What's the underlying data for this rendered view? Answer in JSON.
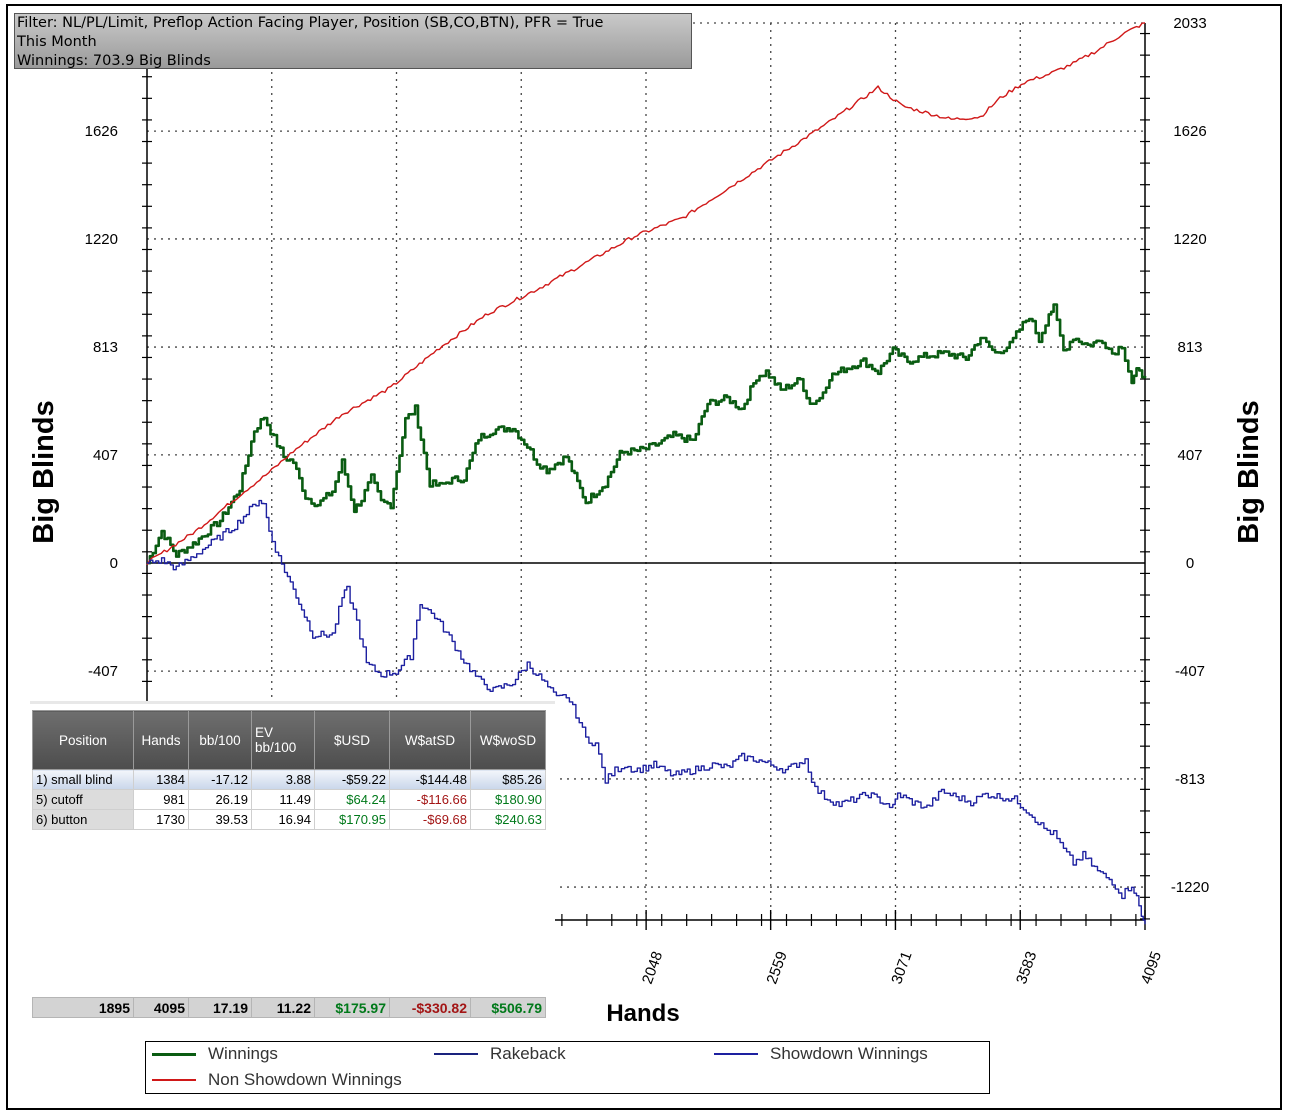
{
  "filter_box": {
    "line1": "Filter: NL/PL/Limit, Preflop Action Facing Player, Position (SB,CO,BTN), PFR = True",
    "line2": "This Month",
    "line3": "Winnings: 703.9 Big Blinds"
  },
  "colors": {
    "winnings": "#0a5c12",
    "non_showdown": "#d01818",
    "showdown": "#1d20a0",
    "rakeback": "#1a237e",
    "positive": "#00791a",
    "negative": "#a31515",
    "header_bg": "#5a5a5a"
  },
  "table": {
    "headers": [
      "Position",
      "Hands",
      "bb/100",
      "EV bb/100",
      "$USD",
      "W$atSD",
      "W$woSD"
    ],
    "rows": [
      [
        "1) small blind",
        "1384",
        "-17.12",
        "3.88",
        "-$59.22",
        "-$144.48",
        "$85.26"
      ],
      [
        "5) cutoff",
        "981",
        "26.19",
        "11.49",
        "$64.24",
        "-$116.66",
        "$180.90"
      ],
      [
        "6) button",
        "1730",
        "39.53",
        "16.94",
        "$170.95",
        "-$69.68",
        "$240.63"
      ]
    ],
    "totals": [
      "1895",
      "4095",
      "17.19",
      "11.22",
      "$175.97",
      "-$330.82",
      "$506.79"
    ]
  },
  "legend": {
    "winnings": "Winnings",
    "rakeback": "Rakeback",
    "showdown": "Showdown Winnings",
    "non_showdown": "Non Showdown Winnings"
  },
  "chart_data": {
    "type": "line",
    "xlabel": "Hands",
    "ylabel": "Big Blinds",
    "y_ticks": [
      -1220,
      -813,
      -407,
      0,
      407,
      813,
      1220,
      1626,
      2033
    ],
    "x_ticks": [
      2048,
      2559,
      3071,
      3583,
      4095
    ],
    "xlim": [
      0,
      4095
    ],
    "ylim": [
      -1350,
      2033
    ],
    "grid": true,
    "series": [
      {
        "name": "Winnings",
        "x": [
          0,
          60,
          120,
          200,
          300,
          380,
          440,
          480,
          520,
          560,
          600,
          650,
          700,
          760,
          800,
          850,
          880,
          920,
          960,
          1000,
          1060,
          1100,
          1160,
          1200,
          1240,
          1300,
          1360,
          1420,
          1500,
          1560,
          1600,
          1640,
          1720,
          1800,
          1880,
          1940,
          1960,
          2000,
          2048,
          2100,
          2160,
          2240,
          2300,
          2380,
          2440,
          2500,
          2540,
          2600,
          2680,
          2720,
          2760,
          2800,
          2860,
          2940,
          3000,
          3060,
          3120,
          3200,
          3280,
          3360,
          3420,
          3480,
          3540,
          3580,
          3620,
          3660,
          3700,
          3720,
          3760,
          3800,
          3860,
          3920,
          3960,
          4000,
          4040,
          4060,
          4095
        ],
        "values": [
          0,
          120,
          30,
          80,
          160,
          280,
          500,
          550,
          470,
          400,
          380,
          250,
          220,
          270,
          380,
          200,
          240,
          320,
          230,
          220,
          540,
          580,
          300,
          290,
          310,
          320,
          470,
          500,
          510,
          440,
          380,
          350,
          400,
          230,
          300,
          410,
          420,
          420,
          430,
          450,
          480,
          460,
          600,
          620,
          580,
          700,
          720,
          650,
          690,
          600,
          620,
          700,
          730,
          760,
          720,
          800,
          760,
          780,
          790,
          770,
          850,
          790,
          820,
          880,
          930,
          840,
          940,
          960,
          800,
          850,
          820,
          840,
          790,
          820,
          680,
          720,
          704
        ]
      },
      {
        "name": "Non Showdown Winnings",
        "x": [
          0,
          200,
          400,
          500,
          600,
          800,
          1000,
          1200,
          1400,
          1600,
          1800,
          2000,
          2200,
          2400,
          2600,
          2800,
          3000,
          3100,
          3300,
          3420,
          3500,
          3600,
          3700,
          3800,
          3900,
          4000,
          4095
        ],
        "values": [
          0,
          120,
          270,
          340,
          420,
          560,
          660,
          810,
          940,
          1030,
          1130,
          1230,
          1300,
          1420,
          1540,
          1660,
          1790,
          1720,
          1670,
          1680,
          1750,
          1810,
          1840,
          1880,
          1930,
          1990,
          2033
        ]
      },
      {
        "name": "Showdown Winnings",
        "x": [
          0,
          60,
          120,
          180,
          240,
          300,
          360,
          420,
          460,
          480,
          500,
          540,
          600,
          680,
          760,
          800,
          820,
          860,
          900,
          960,
          1020,
          1080,
          1120,
          1140,
          1180,
          1240,
          1300,
          1360,
          1420,
          1500,
          1560,
          1620,
          1680,
          1720,
          1760,
          1800,
          1840,
          1880,
          1920,
          1960,
          2000,
          2048,
          2080,
          2160,
          2240,
          2320,
          2380,
          2440,
          2500,
          2560,
          2620,
          2700,
          2740,
          2780,
          2840,
          2900,
          2960,
          3020,
          3060,
          3080,
          3140,
          3200,
          3260,
          3320,
          3380,
          3440,
          3500,
          3560,
          3620,
          3680,
          3720,
          3760,
          3800,
          3840,
          3900,
          3960,
          4000,
          4040,
          4060,
          4080,
          4095
        ],
        "values": [
          0,
          10,
          -20,
          20,
          60,
          100,
          140,
          200,
          240,
          220,
          120,
          20,
          -100,
          -270,
          -270,
          -130,
          -100,
          -220,
          -380,
          -420,
          -410,
          -350,
          -150,
          -170,
          -200,
          -280,
          -370,
          -440,
          -480,
          -450,
          -380,
          -440,
          -510,
          -500,
          -570,
          -660,
          -680,
          -820,
          -780,
          -760,
          -780,
          -770,
          -760,
          -800,
          -780,
          -760,
          -770,
          -730,
          -740,
          -760,
          -780,
          -740,
          -850,
          -880,
          -910,
          -890,
          -870,
          -900,
          -920,
          -870,
          -900,
          -920,
          -860,
          -880,
          -900,
          -870,
          -880,
          -890,
          -940,
          -1000,
          -1020,
          -1080,
          -1130,
          -1100,
          -1160,
          -1200,
          -1250,
          -1210,
          -1260,
          -1330,
          -1360
        ]
      },
      {
        "name": "Rakeback",
        "x": [
          0,
          4095
        ],
        "values": [
          0,
          0
        ]
      }
    ]
  }
}
